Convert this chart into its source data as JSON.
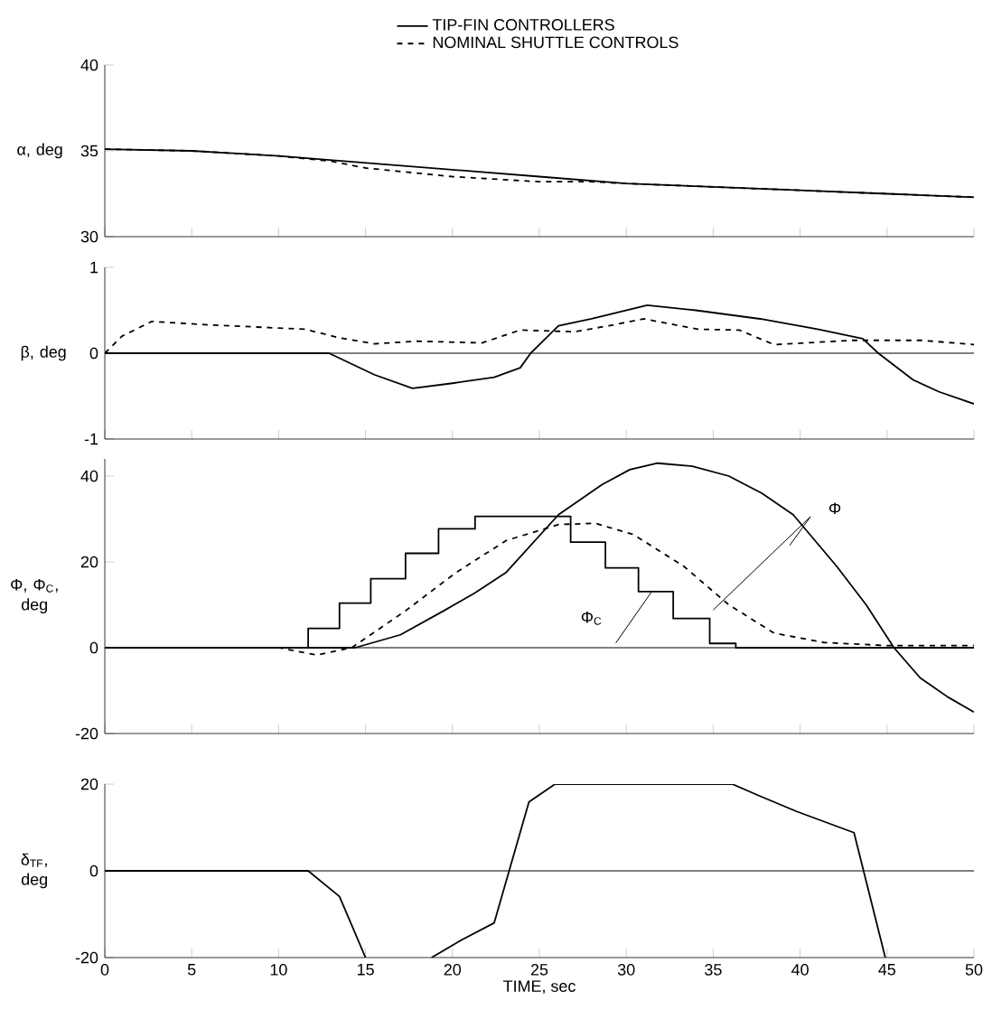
{
  "chart_data": [
    {
      "type": "line",
      "ylabel": "α, deg",
      "xlim": [
        0,
        50
      ],
      "xticks": [
        0,
        5,
        10,
        15,
        20,
        25,
        30,
        35,
        40,
        45,
        50
      ],
      "ylim": [
        30,
        40
      ],
      "yticks": [
        30,
        35,
        40
      ],
      "tick_labels": "y",
      "legend": "top",
      "series": [
        {
          "name": "TIP-FIN CONTROLLERS",
          "color": "#000000",
          "line_style": "solid",
          "x": [
            0,
            5,
            10,
            15,
            20,
            25,
            30,
            35,
            40,
            45,
            50
          ],
          "values": [
            35.1,
            35.0,
            34.7,
            34.3,
            33.9,
            33.5,
            33.1,
            32.9,
            32.7,
            32.5,
            32.3
          ]
        },
        {
          "name": "NOMINAL SHUTTLE CONTROLS",
          "color": "#000000",
          "line_style": "dashed",
          "x": [
            0,
            5,
            10,
            13,
            15,
            20,
            25,
            28,
            30,
            35,
            40,
            45,
            50
          ],
          "values": [
            35.1,
            35.0,
            34.7,
            34.4,
            34.0,
            33.5,
            33.2,
            33.2,
            33.1,
            32.9,
            32.7,
            32.5,
            32.3
          ]
        }
      ]
    },
    {
      "type": "line",
      "ylabel": "β, deg",
      "xlim": [
        0,
        50
      ],
      "xticks": [
        0,
        5,
        10,
        15,
        20,
        25,
        30,
        35,
        40,
        45,
        50
      ],
      "ylim": [
        -1,
        1
      ],
      "yticks": [
        -1,
        0,
        1
      ],
      "tick_labels": "y",
      "ref_lines": [
        {
          "axis": "y",
          "value": 0
        }
      ],
      "series": [
        {
          "color": "#000000",
          "line_style": "solid",
          "x": [
            0,
            12.9,
            15.5,
            17.7,
            20,
            22.4,
            23.9,
            24.5,
            26.1,
            28,
            31.2,
            34,
            37.7,
            41,
            43.6,
            44.5,
            46.5,
            48,
            50
          ],
          "values": [
            0,
            0,
            -0.25,
            -0.41,
            -0.35,
            -0.28,
            -0.17,
            0,
            0.32,
            0.4,
            0.56,
            0.5,
            0.4,
            0.28,
            0.17,
            0,
            -0.31,
            -0.45,
            -0.59
          ]
        },
        {
          "color": "#000000",
          "line_style": "dashed",
          "x": [
            0,
            1,
            2.7,
            6,
            11.5,
            13.5,
            15.5,
            18,
            21.7,
            23.9,
            27,
            29,
            31,
            34.1,
            36.5,
            38.5,
            43,
            47,
            50
          ],
          "values": [
            0,
            0.2,
            0.37,
            0.33,
            0.28,
            0.18,
            0.11,
            0.14,
            0.12,
            0.27,
            0.25,
            0.32,
            0.4,
            0.28,
            0.27,
            0.1,
            0.15,
            0.15,
            0.1
          ]
        }
      ]
    },
    {
      "type": "line",
      "ylabel": "Φ, Φ$_{C}$, deg",
      "xlim": [
        0,
        50
      ],
      "xticks": [
        0,
        5,
        10,
        15,
        20,
        25,
        30,
        35,
        40,
        45,
        50
      ],
      "ylim": [
        -20,
        44
      ],
      "yticks": [
        -20,
        0,
        20,
        40
      ],
      "tick_labels": "y",
      "ref_lines": [
        {
          "axis": "y",
          "value": 0
        }
      ],
      "annotations": [
        "Φ",
        "Φ$_{C}$"
      ],
      "series": [
        {
          "color": "#000000",
          "line_style": "solid",
          "x": [
            0,
            14.4,
            17,
            19.5,
            21.3,
            23.1,
            26.1,
            28.6,
            30.2,
            31.8,
            33.8,
            35.9,
            37.8,
            39.6,
            42.1,
            43.8,
            45.4,
            46.9,
            48.5,
            50
          ],
          "values": [
            0,
            0,
            3,
            8.6,
            12.8,
            17.6,
            31,
            38,
            41.5,
            43,
            42.3,
            40,
            36,
            31,
            19,
            10,
            0,
            -7,
            -11.5,
            -15
          ]
        },
        {
          "color": "#000000",
          "line_style": "dashed",
          "x": [
            0,
            10,
            12.2,
            14.2,
            17.3,
            20.2,
            23.1,
            26.1,
            28.2,
            30.4,
            33.3,
            35.9,
            38.5,
            41.4,
            45,
            50
          ],
          "values": [
            0,
            0,
            -1.7,
            0,
            8.6,
            17.5,
            25,
            28.7,
            29,
            26.4,
            19,
            10,
            3.4,
            1.2,
            0.5,
            0.5
          ]
        },
        {
          "type": "step",
          "color": "#000000",
          "line_style": "solid",
          "x": [
            0,
            11.7,
            13.5,
            15.3,
            17.3,
            19.2,
            21.3,
            26.8,
            28.8,
            30.7,
            32.7,
            34.8,
            36.3,
            50
          ],
          "values": [
            0,
            4.5,
            10.4,
            16.1,
            22,
            27.7,
            30.6,
            24.6,
            18.6,
            13.1,
            6.8,
            1,
            0,
            0
          ]
        }
      ]
    },
    {
      "type": "line",
      "ylabel": "δ$_{TF}$, deg",
      "xlabel": "TIME, sec",
      "xlim": [
        0,
        50
      ],
      "xticks": [
        0,
        5,
        10,
        15,
        20,
        25,
        30,
        35,
        40,
        45,
        50
      ],
      "ylim": [
        -20,
        20
      ],
      "yticks": [
        -20,
        0,
        20
      ],
      "ref_lines": [
        {
          "axis": "y",
          "value": 0
        }
      ],
      "series": [
        {
          "color": "#000000",
          "line_style": "solid",
          "x": [
            0,
            11.7,
            13.5,
            15.0,
            16.9,
            18.8,
            20.5,
            22.4,
            24.4,
            25.9,
            30,
            36.1,
            37.6,
            39.8,
            43.1,
            44.9
          ],
          "values": [
            0,
            0,
            -5.9,
            -20,
            null,
            -20,
            -16,
            -12,
            15.9,
            20,
            20,
            20,
            17.4,
            13.7,
            8.8,
            -20
          ]
        }
      ]
    }
  ]
}
